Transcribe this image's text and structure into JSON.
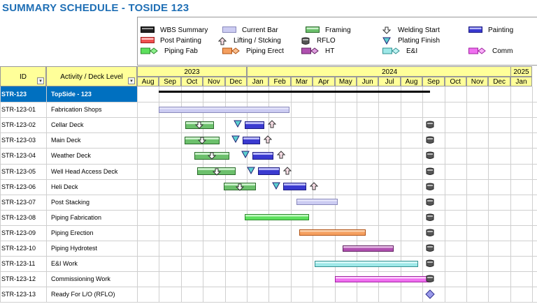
{
  "title": "SUMMARY SCHEDULE - TOSIDE 123",
  "legend": [
    {
      "label": "WBS Summary",
      "icon": "wbs-summary-icon"
    },
    {
      "label": "Current Bar",
      "icon": "current-bar-icon"
    },
    {
      "label": "Framing",
      "icon": "framing-icon"
    },
    {
      "label": "Welding Start",
      "icon": "welding-start-icon"
    },
    {
      "label": "Painting",
      "icon": "painting-icon"
    },
    {
      "label": "Post Painting",
      "icon": "post-painting-icon"
    },
    {
      "label": "Lifting / Stcking",
      "icon": "lifting-icon"
    },
    {
      "label": "RFLO",
      "icon": "rflo-icon"
    },
    {
      "label": "Plating Finish",
      "icon": "plating-finish-icon"
    },
    {
      "label": "Piping Fab",
      "icon": "piping-fab-icon"
    },
    {
      "label": "Piping Erect",
      "icon": "piping-erect-icon"
    },
    {
      "label": "HT",
      "icon": "ht-icon"
    },
    {
      "label": "E&I",
      "icon": "ei-icon"
    },
    {
      "label": "Comm",
      "icon": "comm-icon"
    }
  ],
  "header": {
    "id": "ID",
    "activity": "Activity / Deck Level",
    "years": [
      "2023",
      "2024",
      "2025"
    ],
    "months": [
      "Aug",
      "Sep",
      "Oct",
      "Nov",
      "Dec",
      "Jan",
      "Feb",
      "Mar",
      "Apr",
      "May",
      "Jun",
      "Jul",
      "Aug",
      "Sep",
      "Oct",
      "Nov",
      "Dec",
      "Jan"
    ]
  },
  "rows": [
    {
      "id": "STR-123",
      "activity": "TopSide - 123"
    },
    {
      "id": "STR-123-01",
      "activity": "Fabrication Shops"
    },
    {
      "id": "STR-123-02",
      "activity": "Cellar Deck"
    },
    {
      "id": "STR-123-03",
      "activity": "Main Deck"
    },
    {
      "id": "STR-123-04",
      "activity": "Weather Deck"
    },
    {
      "id": "STR-123-05",
      "activity": "Well Head Access Deck"
    },
    {
      "id": "STR-123-06",
      "activity": "Heli Deck"
    },
    {
      "id": "STR-123-07",
      "activity": "Post Stacking"
    },
    {
      "id": "STR-123-08",
      "activity": "Piping Fabrication"
    },
    {
      "id": "STR-123-09",
      "activity": "Piping Erection"
    },
    {
      "id": "STR-123-10",
      "activity": "Piping Hydrotest"
    },
    {
      "id": "STR-123-11",
      "activity": "E&I Work"
    },
    {
      "id": "STR-123-12",
      "activity": "Commissioning Work"
    },
    {
      "id": "STR-123-13",
      "activity": "Ready For L/O (RFLO)"
    }
  ],
  "colors": {
    "title": "#1f6fb5",
    "header_bg": "#ffff99",
    "selected_row": "#0070c0",
    "framing": "#4aa84a",
    "painting": "#3333cc",
    "current": "#c8c8f0",
    "piping_fab": "#44cc44",
    "piping_erect": "#f09040",
    "ht": "#a040a0",
    "ei": "#40c0c0",
    "comm": "#e040e0"
  }
}
